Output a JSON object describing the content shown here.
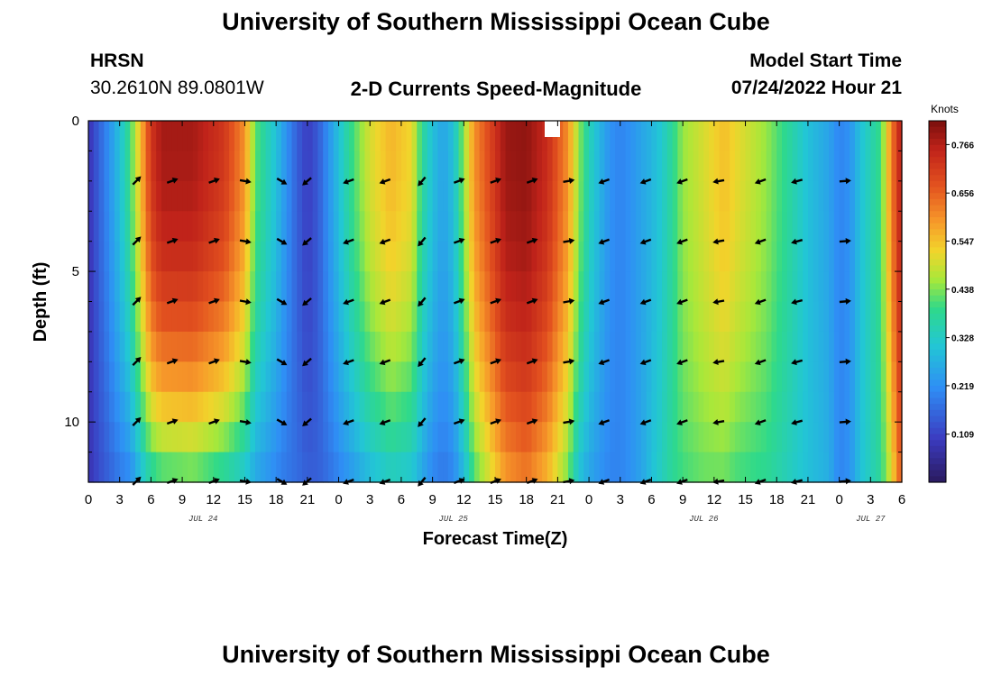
{
  "header": {
    "title": "University of Southern Mississippi Ocean Cube",
    "station": "HRSN",
    "coords": "30.2610N  89.0801W",
    "chart_title": "2-D Currents Speed-Magnitude",
    "model_start_label": "Model Start Time",
    "model_start_value": "07/24/2022 Hour 21"
  },
  "footer": {
    "title": "University of Southern Mississippi Ocean Cube"
  },
  "chart_data": {
    "type": "heatmap",
    "title": "2-D Currents Speed-Magnitude",
    "xlabel": "Forecast Time(Z)",
    "ylabel": "Depth (ft)",
    "x_tick_labels": [
      "0",
      "3",
      "6",
      "9",
      "12",
      "15",
      "18",
      "21",
      "0",
      "3",
      "6",
      "9",
      "12",
      "15",
      "18",
      "21",
      "0",
      "3",
      "6",
      "9",
      "12",
      "15",
      "18",
      "21",
      "0",
      "3",
      "6"
    ],
    "x_range_hours": [
      0,
      78
    ],
    "y_tick_labels": [
      "0",
      "5",
      "10"
    ],
    "y_tick_values": [
      0,
      5,
      10
    ],
    "ylim": [
      0,
      12
    ],
    "date_labels": [
      {
        "text": "JUL 24",
        "hour": 11
      },
      {
        "text": "JUL 25",
        "hour": 35
      },
      {
        "text": "JUL 26",
        "hour": 59
      },
      {
        "text": "JUL 27",
        "hour": 75
      }
    ],
    "colorbar": {
      "title": "Knots",
      "ticks": [
        "0.766",
        "0.656",
        "0.547",
        "0.438",
        "0.328",
        "0.219",
        "0.109"
      ],
      "tick_values": [
        0.766,
        0.656,
        0.547,
        0.438,
        0.328,
        0.219,
        0.109
      ],
      "min": 0.0,
      "max": 0.82
    },
    "speed_profile": {
      "hours": [
        0,
        1,
        2,
        3,
        4,
        5,
        6,
        7,
        10,
        13,
        15,
        16,
        18,
        19,
        20,
        21,
        22,
        23,
        25,
        27,
        29,
        31,
        32,
        33,
        34,
        35,
        36,
        37,
        40,
        42,
        44,
        46,
        47,
        48,
        49,
        50,
        51,
        52,
        53,
        54,
        55,
        56,
        57,
        59,
        61,
        62,
        65,
        67,
        69,
        71,
        72,
        73,
        74,
        76,
        77,
        78
      ],
      "surface": [
        0.08,
        0.15,
        0.22,
        0.3,
        0.4,
        0.55,
        0.72,
        0.78,
        0.78,
        0.72,
        0.6,
        0.42,
        0.3,
        0.22,
        0.15,
        0.1,
        0.14,
        0.22,
        0.38,
        0.5,
        0.56,
        0.52,
        0.38,
        0.3,
        0.25,
        0.3,
        0.45,
        0.6,
        0.79,
        0.8,
        0.74,
        0.6,
        0.45,
        0.35,
        0.28,
        0.22,
        0.2,
        0.22,
        0.25,
        0.28,
        0.32,
        0.38,
        0.45,
        0.5,
        0.55,
        0.52,
        0.45,
        0.38,
        0.3,
        0.25,
        0.2,
        0.22,
        0.3,
        0.4,
        0.62,
        0.78
      ],
      "bottom": [
        0.08,
        0.12,
        0.15,
        0.18,
        0.2,
        0.28,
        0.35,
        0.38,
        0.4,
        0.35,
        0.3,
        0.25,
        0.2,
        0.18,
        0.17,
        0.15,
        0.15,
        0.17,
        0.22,
        0.28,
        0.32,
        0.3,
        0.25,
        0.2,
        0.18,
        0.2,
        0.28,
        0.4,
        0.58,
        0.62,
        0.55,
        0.42,
        0.3,
        0.25,
        0.22,
        0.2,
        0.2,
        0.22,
        0.25,
        0.3,
        0.34,
        0.38,
        0.4,
        0.42,
        0.42,
        0.4,
        0.38,
        0.34,
        0.3,
        0.27,
        0.2,
        0.22,
        0.3,
        0.38,
        0.5,
        0.68
      ]
    },
    "vector_hours": [
      4.6,
      8,
      12,
      15,
      18.5,
      21,
      25,
      28.5,
      32,
      35.5,
      39,
      42.5,
      46,
      49.5,
      53.5,
      57,
      60.5,
      64.5,
      68,
      72.5
    ],
    "vector_depths": [
      2,
      4,
      6,
      8,
      10,
      12
    ],
    "vector_directions_deg": [
      45,
      20,
      20,
      350,
      330,
      220,
      200,
      200,
      230,
      20,
      20,
      20,
      10,
      200,
      200,
      200,
      190,
      200,
      195,
      5
    ]
  }
}
